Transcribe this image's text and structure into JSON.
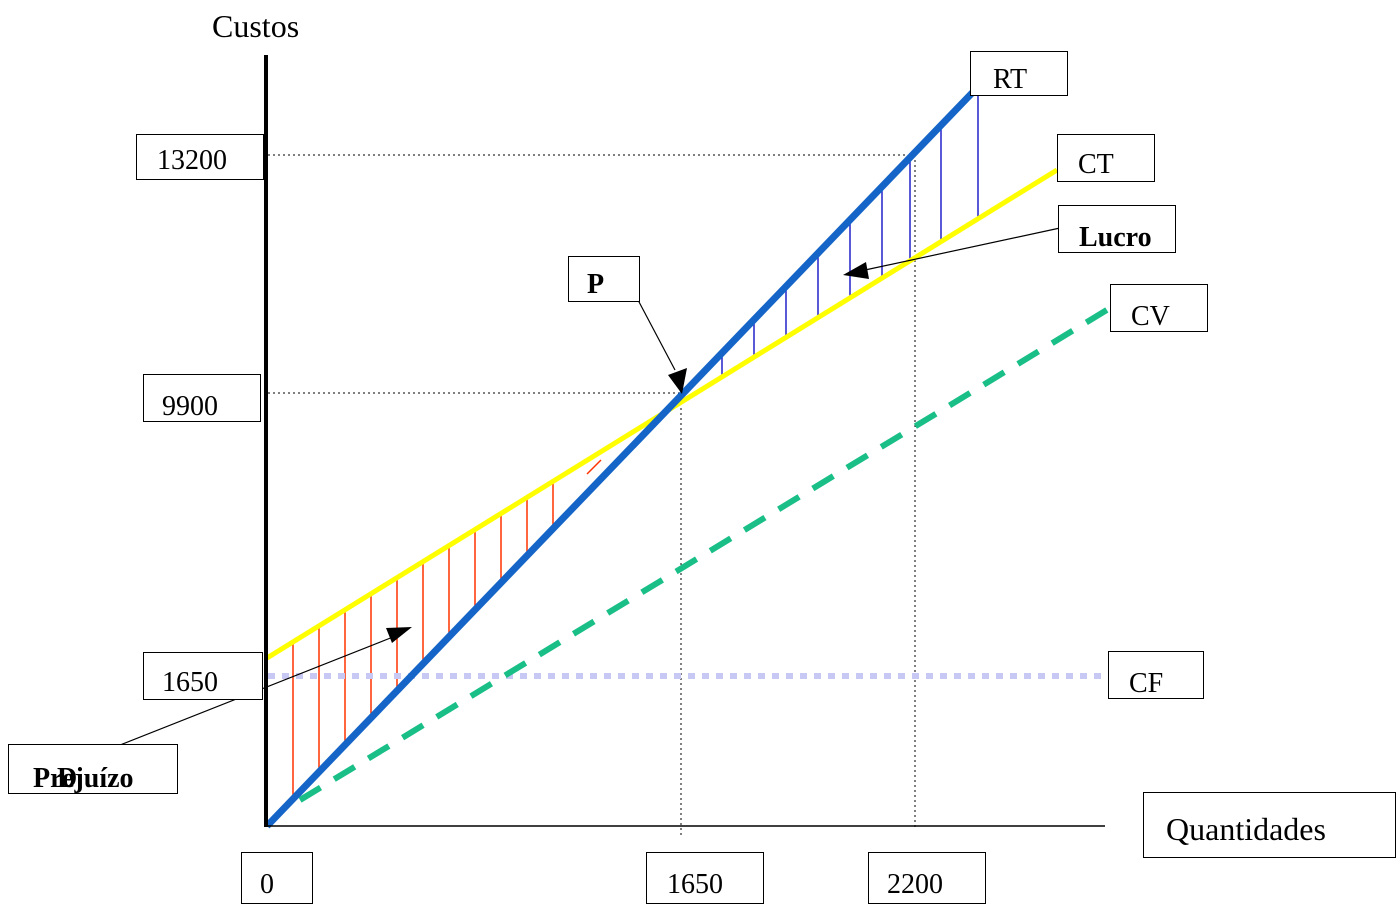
{
  "axes": {
    "y_title": "Custos",
    "x_title": "Quantidades"
  },
  "y_labels": {
    "v13200": "13200",
    "v9900": "9900",
    "v1650": "1650"
  },
  "x_labels": {
    "v0": "0",
    "v1650": "1650",
    "v2200": "2200"
  },
  "line_labels": {
    "rt": "RT",
    "ct": "CT",
    "cv": "CV",
    "cf": "CF"
  },
  "annotations": {
    "p": "P",
    "lucro": "Lucro",
    "prejuizo": "Prejuízo",
    "prejuizo_overlap": "D"
  },
  "colors": {
    "rt": "#1565c8",
    "ct": "#ffff00",
    "cv": "#19bf86",
    "cf": "#c8c8f4",
    "loss_hatch": "#ff3300",
    "profit_hatch": "#2222cc"
  }
}
